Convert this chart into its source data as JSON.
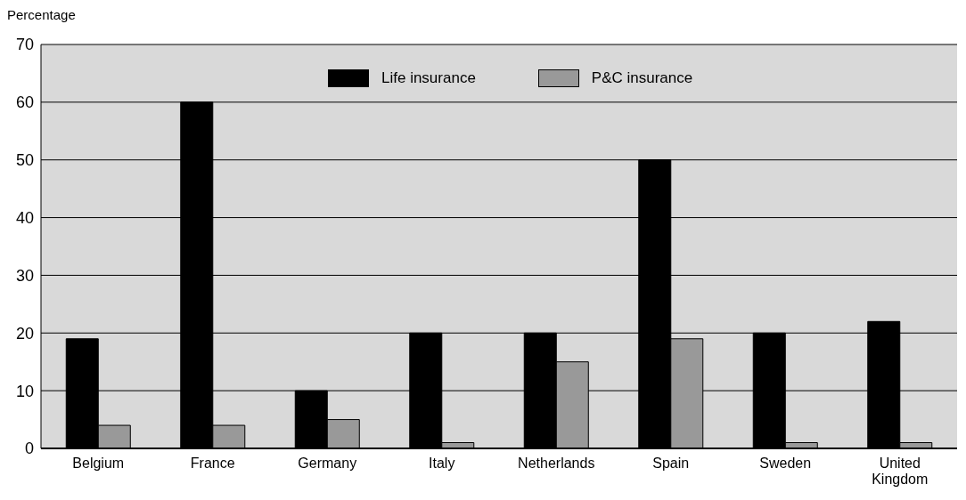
{
  "chart_data": {
    "type": "bar",
    "ylabel": "Percentage",
    "categories": [
      "Belgium",
      "France",
      "Germany",
      "Italy",
      "Netherlands",
      "Spain",
      "Sweden",
      "United Kingdom"
    ],
    "series": [
      {
        "name": "Life insurance",
        "color": "#000000",
        "values": [
          19,
          60,
          10,
          20,
          20,
          50,
          20,
          22
        ]
      },
      {
        "name": "P&C insurance",
        "color": "#999999",
        "values": [
          4,
          4,
          5,
          1,
          15,
          19,
          1,
          1
        ]
      }
    ],
    "ylim": [
      0,
      70
    ],
    "yticks": [
      0,
      10,
      20,
      30,
      40,
      50,
      60,
      70
    ],
    "grid": "y",
    "legend": "top"
  }
}
